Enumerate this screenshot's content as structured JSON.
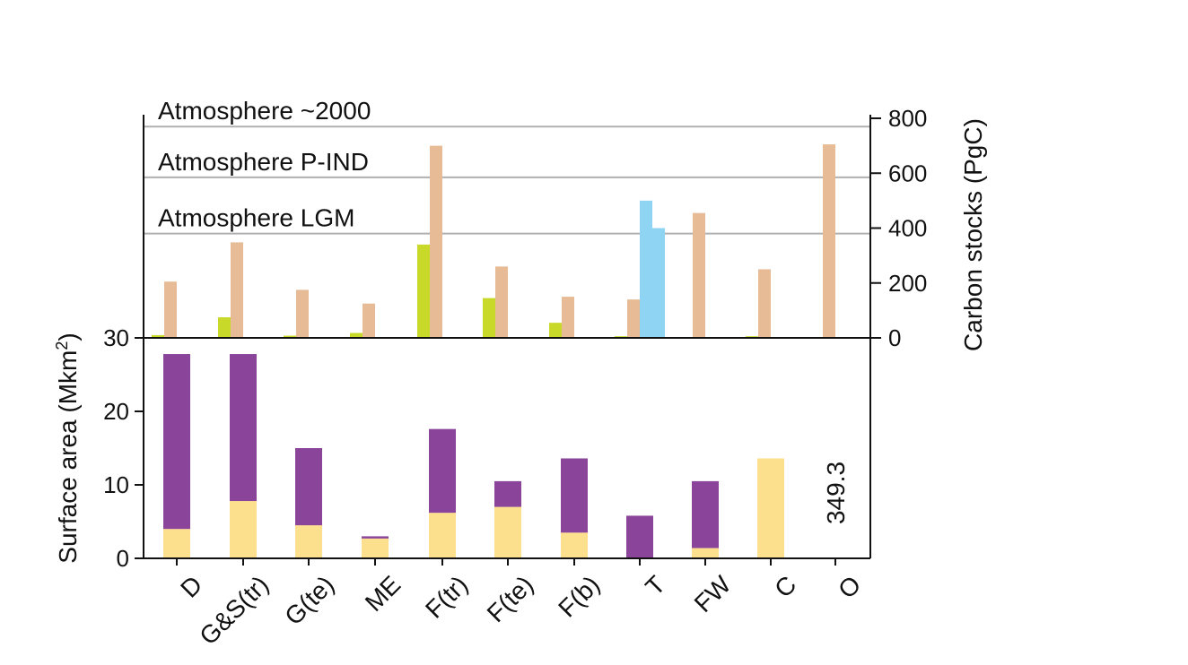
{
  "chart_data": [
    {
      "type": "bar",
      "panel": "carbon stocks",
      "categories": [
        "D",
        "G&S(tr)",
        "G(te)",
        "ME",
        "F(tr)",
        "F(te)",
        "F(b)",
        "T",
        "FW",
        "C",
        "O"
      ],
      "ylabel": "Carbon stocks (PgC)",
      "ylim": [
        0,
        800
      ],
      "yticks": [
        "0",
        "200",
        "400",
        "600",
        "800"
      ],
      "series": [
        {
          "color": "#c8d92a",
          "values": [
            10,
            75,
            8,
            18,
            340,
            145,
            55,
            6,
            0,
            6,
            0
          ]
        },
        {
          "color": "#e6bb95",
          "values": [
            205,
            348,
            175,
            125,
            700,
            260,
            150,
            140,
            455,
            250,
            705
          ]
        },
        {
          "color": "#8fd4f3",
          "values": [
            0,
            0,
            0,
            0,
            0,
            0,
            0,
            500,
            0,
            0,
            0
          ]
        },
        {
          "color": "#8fd4f3",
          "values": [
            0,
            0,
            0,
            0,
            0,
            0,
            0,
            400,
            0,
            0,
            0
          ]
        }
      ],
      "reference_lines": [
        {
          "label": "Atmosphere ~2000",
          "value": 770
        },
        {
          "label": "Atmosphere P-IND",
          "value": 585
        },
        {
          "label": "Atmosphere LGM",
          "value": 380
        }
      ],
      "grid": false
    },
    {
      "type": "bar",
      "panel": "surface area",
      "stacked": true,
      "categories": [
        "D",
        "G&S(tr)",
        "G(te)",
        "ME",
        "F(tr)",
        "F(te)",
        "F(b)",
        "T",
        "FW",
        "C",
        "O"
      ],
      "ylabel": "Surface area (Mkm",
      "ylabel_superscript": "2",
      "ylabel_end": ")",
      "ylim": [
        0,
        30
      ],
      "yticks": [
        "0",
        "10",
        "20",
        "30"
      ],
      "series": [
        {
          "color": "#fde08e",
          "values": [
            4,
            7.8,
            4.5,
            2.7,
            6.2,
            7,
            3.5,
            0,
            1.4,
            13.6,
            0
          ]
        },
        {
          "color": "#8a4499",
          "values": [
            23.8,
            20,
            10.5,
            0.3,
            11.4,
            3.5,
            10.1,
            5.8,
            9.1,
            0,
            0
          ]
        }
      ],
      "annotations": [
        {
          "category": "O",
          "text": "349.3"
        }
      ],
      "grid": false
    }
  ]
}
